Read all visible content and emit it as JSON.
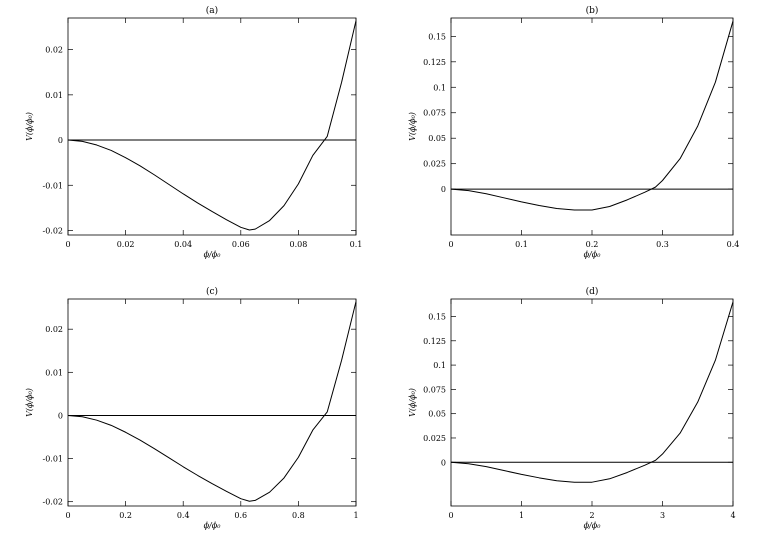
{
  "chart_data": [
    {
      "type": "line",
      "title": "(a)",
      "xlabel": "ϕ/ϕ₀",
      "ylabel": "V(ϕ/ϕ₀)",
      "xlim": [
        0,
        0.1
      ],
      "ylim": [
        -0.021,
        0.027
      ],
      "xticks": [
        0,
        0.02,
        0.04,
        0.06,
        0.08,
        0.1
      ],
      "xtick_labels": [
        "0",
        "0.02",
        "0.04",
        "0.06",
        "0.08",
        "0.1"
      ],
      "yticks": [
        -0.02,
        -0.01,
        0,
        0.01,
        0.02
      ],
      "ytick_labels": [
        "-0.02",
        "-0.01",
        "0",
        "0.01",
        "0.02"
      ],
      "grid": false,
      "series": [
        {
          "x": [
            0,
            0.005,
            0.01,
            0.015,
            0.02,
            0.025,
            0.03,
            0.035,
            0.04,
            0.045,
            0.05,
            0.055,
            0.06,
            0.063,
            0.065,
            0.07,
            0.075,
            0.08,
            0.085,
            0.09,
            0.095,
            0.1
          ],
          "y": [
            0,
            -0.0003,
            -0.0011,
            -0.0023,
            -0.0039,
            -0.0057,
            -0.0077,
            -0.0098,
            -0.0119,
            -0.0139,
            -0.0158,
            -0.0176,
            -0.0193,
            -0.0199,
            -0.0197,
            -0.0178,
            -0.0145,
            -0.0097,
            -0.0034,
            0.0008,
            0.0128,
            0.0264
          ]
        },
        {
          "x": [
            0,
            0.1
          ],
          "y": [
            0,
            0
          ]
        }
      ]
    },
    {
      "type": "line",
      "title": "(b)",
      "xlabel": "ϕ/ϕ₀",
      "ylabel": "V(ϕ/ϕ₀)",
      "xlim": [
        0,
        0.4
      ],
      "ylim": [
        -0.045,
        0.168
      ],
      "xticks": [
        0,
        0.1,
        0.2,
        0.3,
        0.4
      ],
      "xtick_labels": [
        "0",
        "0.1",
        "0.2",
        "0.3",
        "0.4"
      ],
      "yticks": [
        0,
        0.025,
        0.05,
        0.075,
        0.1,
        0.125,
        0.15
      ],
      "ytick_labels": [
        "0",
        "0.025",
        "0.05",
        "0.075",
        "0.1",
        "0.125",
        "0.15"
      ],
      "grid": false,
      "series": [
        {
          "x": [
            0,
            0.025,
            0.05,
            0.075,
            0.1,
            0.125,
            0.15,
            0.175,
            0.2,
            0.225,
            0.25,
            0.275,
            0.29,
            0.3,
            0.325,
            0.35,
            0.375,
            0.4
          ],
          "y": [
            0,
            -0.0015,
            -0.0045,
            -0.0085,
            -0.0125,
            -0.016,
            -0.019,
            -0.0205,
            -0.0205,
            -0.017,
            -0.0105,
            -0.003,
            0.002,
            0.0085,
            0.03,
            0.062,
            0.105,
            0.165
          ]
        },
        {
          "x": [
            0,
            0.4
          ],
          "y": [
            0,
            0
          ]
        }
      ]
    },
    {
      "type": "line",
      "title": "(c)",
      "xlabel": "ϕ/ϕ₀",
      "ylabel": "V(ϕ/ϕ₀)",
      "xlim": [
        0,
        1
      ],
      "ylim": [
        -0.021,
        0.027
      ],
      "xticks": [
        0,
        0.2,
        0.4,
        0.6,
        0.8,
        1
      ],
      "xtick_labels": [
        "0",
        "0.2",
        "0.4",
        "0.6",
        "0.8",
        "1"
      ],
      "yticks": [
        -0.02,
        -0.01,
        0,
        0.01,
        0.02
      ],
      "ytick_labels": [
        "-0.02",
        "-0.01",
        "0",
        "0.01",
        "0.02"
      ],
      "grid": false,
      "series": [
        {
          "x": [
            0,
            0.05,
            0.1,
            0.15,
            0.2,
            0.25,
            0.3,
            0.35,
            0.4,
            0.45,
            0.5,
            0.55,
            0.6,
            0.63,
            0.65,
            0.7,
            0.75,
            0.8,
            0.85,
            0.9,
            0.95,
            1
          ],
          "y": [
            0,
            -0.0003,
            -0.0011,
            -0.0023,
            -0.0039,
            -0.0057,
            -0.0077,
            -0.0098,
            -0.0119,
            -0.0139,
            -0.0158,
            -0.0176,
            -0.0193,
            -0.0199,
            -0.0197,
            -0.0178,
            -0.0145,
            -0.0097,
            -0.0034,
            0.0008,
            0.0128,
            0.0264
          ]
        },
        {
          "x": [
            0,
            1
          ],
          "y": [
            0,
            0
          ]
        }
      ]
    },
    {
      "type": "line",
      "title": "(d)",
      "xlabel": "ϕ/ϕ₀",
      "ylabel": "V(ϕ/ϕ₀)",
      "xlim": [
        0,
        4
      ],
      "ylim": [
        -0.045,
        0.168
      ],
      "xticks": [
        0,
        1,
        2,
        3,
        4
      ],
      "xtick_labels": [
        "0",
        "1",
        "2",
        "3",
        "4"
      ],
      "yticks": [
        0,
        0.025,
        0.05,
        0.075,
        0.1,
        0.125,
        0.15
      ],
      "ytick_labels": [
        "0",
        "0.025",
        "0.05",
        "0.075",
        "0.1",
        "0.125",
        "0.15"
      ],
      "grid": false,
      "series": [
        {
          "x": [
            0,
            0.25,
            0.5,
            0.75,
            1,
            1.25,
            1.5,
            1.75,
            2,
            2.25,
            2.5,
            2.75,
            2.9,
            3,
            3.25,
            3.5,
            3.75,
            4
          ],
          "y": [
            0,
            -0.0015,
            -0.0045,
            -0.0085,
            -0.0125,
            -0.016,
            -0.019,
            -0.0205,
            -0.0205,
            -0.017,
            -0.0105,
            -0.003,
            0.002,
            0.0085,
            0.03,
            0.062,
            0.105,
            0.165
          ]
        },
        {
          "x": [
            0,
            4
          ],
          "y": [
            0,
            0
          ]
        }
      ]
    }
  ]
}
